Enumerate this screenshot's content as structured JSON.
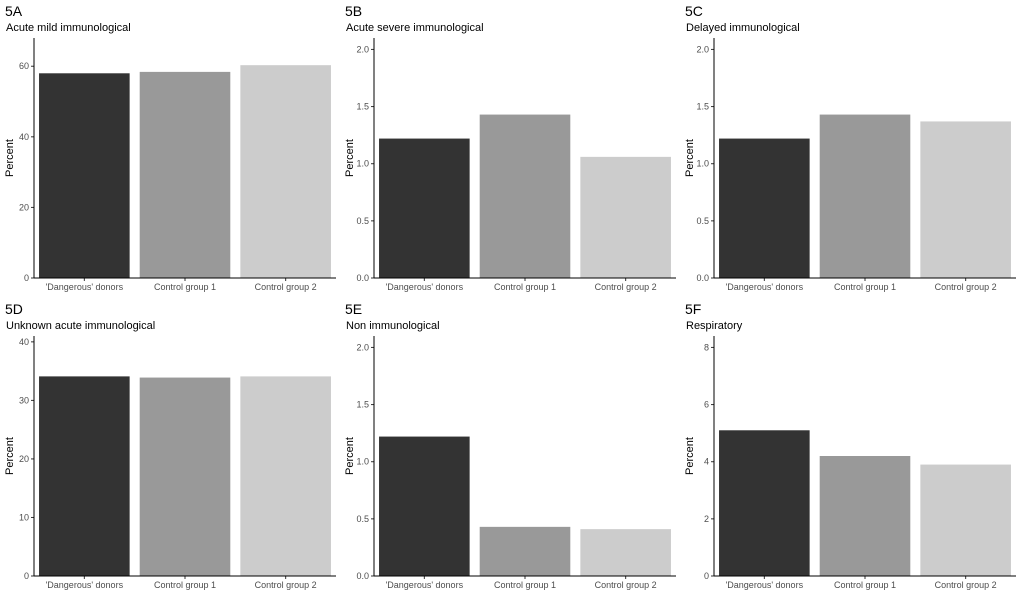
{
  "chart_data": [
    {
      "type": "bar",
      "tag": "5A",
      "subtitle": "Acute mild immunological",
      "ylabel": "Percent",
      "categories": [
        "'Dangerous' donors",
        "Control group 1",
        "Control group 2"
      ],
      "values": [
        58.0,
        58.4,
        60.3
      ],
      "ylim": [
        0,
        68
      ],
      "yticks": [
        0,
        20,
        40,
        60
      ],
      "ytick_labels": [
        "0",
        "20",
        "40",
        "60"
      ],
      "colors": [
        "#333333",
        "#999999",
        "#cccccc"
      ]
    },
    {
      "type": "bar",
      "tag": "5B",
      "subtitle": "Acute severe immunological",
      "ylabel": "Percent",
      "categories": [
        "'Dangerous' donors",
        "Control group 1",
        "Control group 2"
      ],
      "values": [
        1.22,
        1.43,
        1.06
      ],
      "ylim": [
        0,
        2.1
      ],
      "yticks": [
        0,
        0.5,
        1.0,
        1.5,
        2.0
      ],
      "ytick_labels": [
        "0.0",
        "0.5",
        "1.0",
        "1.5",
        "2.0"
      ],
      "colors": [
        "#333333",
        "#999999",
        "#cccccc"
      ]
    },
    {
      "type": "bar",
      "tag": "5C",
      "subtitle": "Delayed immunological",
      "ylabel": "Percent",
      "categories": [
        "'Dangerous' donors",
        "Control group 1",
        "Control group 2"
      ],
      "values": [
        1.22,
        1.43,
        1.37
      ],
      "ylim": [
        0,
        2.1
      ],
      "yticks": [
        0,
        0.5,
        1.0,
        1.5,
        2.0
      ],
      "ytick_labels": [
        "0.0",
        "0.5",
        "1.0",
        "1.5",
        "2.0"
      ],
      "colors": [
        "#333333",
        "#999999",
        "#cccccc"
      ]
    },
    {
      "type": "bar",
      "tag": "5D",
      "subtitle": "Unknown acute immunological",
      "ylabel": "Percent",
      "categories": [
        "'Dangerous' donors",
        "Control group 1",
        "Control group 2"
      ],
      "values": [
        34.1,
        33.9,
        34.1
      ],
      "ylim": [
        0,
        41
      ],
      "yticks": [
        0,
        10,
        20,
        30,
        40
      ],
      "ytick_labels": [
        "0",
        "10",
        "20",
        "30",
        "40"
      ],
      "colors": [
        "#333333",
        "#999999",
        "#cccccc"
      ]
    },
    {
      "type": "bar",
      "tag": "5E",
      "subtitle": "Non immunological",
      "ylabel": "Percent",
      "categories": [
        "'Dangerous' donors",
        "Control group 1",
        "Control group 2"
      ],
      "values": [
        1.22,
        0.43,
        0.41
      ],
      "ylim": [
        0,
        2.1
      ],
      "yticks": [
        0,
        0.5,
        1.0,
        1.5,
        2.0
      ],
      "ytick_labels": [
        "0.0",
        "0.5",
        "1.0",
        "1.5",
        "2.0"
      ],
      "colors": [
        "#333333",
        "#999999",
        "#cccccc"
      ]
    },
    {
      "type": "bar",
      "tag": "5F",
      "subtitle": "Respiratory",
      "ylabel": "Percent",
      "categories": [
        "'Dangerous' donors",
        "Control group 1",
        "Control group 2"
      ],
      "values": [
        5.1,
        4.2,
        3.9
      ],
      "ylim": [
        0,
        8.4
      ],
      "yticks": [
        0,
        2,
        4,
        6,
        8
      ],
      "ytick_labels": [
        "0",
        "2",
        "4",
        "6",
        "8"
      ],
      "colors": [
        "#333333",
        "#999999",
        "#cccccc"
      ]
    }
  ]
}
